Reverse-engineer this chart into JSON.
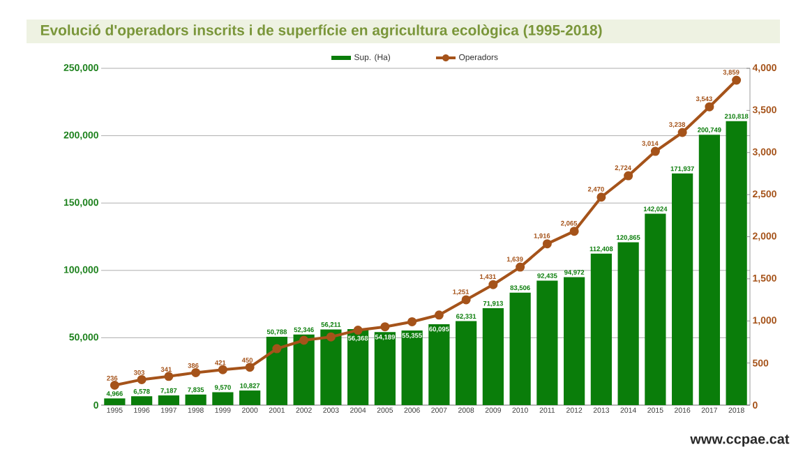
{
  "chart_data": {
    "type": "bar",
    "title": "Evolució d'operadors inscrits i de superfície en agricultura ecològica (1995-2018)",
    "categories": [
      "1995",
      "1996",
      "1997",
      "1998",
      "1999",
      "2000",
      "2001",
      "2002",
      "2003",
      "2004",
      "2005",
      "2006",
      "2007",
      "2008",
      "2009",
      "2010",
      "2011",
      "2012",
      "2013",
      "2014",
      "2015",
      "2016",
      "2017",
      "2018"
    ],
    "series": [
      {
        "name": "Sup. (Ha)",
        "color": "#0a7d0a",
        "values": [
          4966,
          6578,
          7187,
          7835,
          9570,
          10827,
          50788,
          52346,
          56211,
          56368,
          54189,
          55355,
          60095,
          62331,
          71913,
          83506,
          92435,
          94972,
          112408,
          120865,
          142024,
          171937,
          200749,
          210818
        ],
        "value_labels": [
          "4,966",
          "6,578",
          "7,187",
          "7,835",
          "9,570",
          "10,827",
          "50,788",
          "52,346",
          "56,211",
          "56,368",
          "54,189",
          "55,355",
          "60,095",
          "62,331",
          "71,913",
          "83,506",
          "92,435",
          "94,972",
          "112,408",
          "120,865",
          "142,024",
          "171,937",
          "200,749",
          "210,818"
        ]
      },
      {
        "name": "Operadors",
        "type": "line",
        "axis": "y2",
        "color": "#a5531a",
        "values": [
          236,
          303,
          341,
          386,
          421,
          450,
          670,
          770,
          810,
          890,
          930,
          990,
          1070,
          1251,
          1431,
          1639,
          1916,
          2065,
          2470,
          2724,
          3014,
          3238,
          3543,
          3859
        ],
        "value_labels": [
          "236",
          "303",
          "341",
          "386",
          "421",
          "450",
          null,
          null,
          null,
          null,
          null,
          null,
          null,
          "1,251",
          "1,431",
          "1,639",
          "1,916",
          "2,065",
          "2,470",
          "2,724",
          "3,014",
          "3,238",
          "3,543",
          "3,859"
        ]
      }
    ],
    "ylim": [
      0,
      250000
    ],
    "yticks": [
      {
        "value": 0,
        "label": "0"
      },
      {
        "value": 50000,
        "label": "50,000"
      },
      {
        "value": 100000,
        "label": "100,000"
      },
      {
        "value": 150000,
        "label": "150,000"
      },
      {
        "value": 200000,
        "label": "200,000"
      },
      {
        "value": 250000,
        "label": "250,000"
      }
    ],
    "y2lim": [
      0,
      4000
    ],
    "y2ticks": [
      {
        "value": 0,
        "label": "0"
      },
      {
        "value": 500,
        "label": "500"
      },
      {
        "value": 1000,
        "label": "1,000"
      },
      {
        "value": 1500,
        "label": "1,500"
      },
      {
        "value": 2000,
        "label": "2,000"
      },
      {
        "value": 2500,
        "label": "2,500"
      },
      {
        "value": 3000,
        "label": "3,000"
      },
      {
        "value": 3500,
        "label": "3,500"
      },
      {
        "value": 4000,
        "label": "4,000"
      }
    ],
    "grid": "y",
    "legend": "top",
    "marker": "circle",
    "line_style": "solid",
    "annotations": [
      "www.ccpae.cat"
    ]
  }
}
